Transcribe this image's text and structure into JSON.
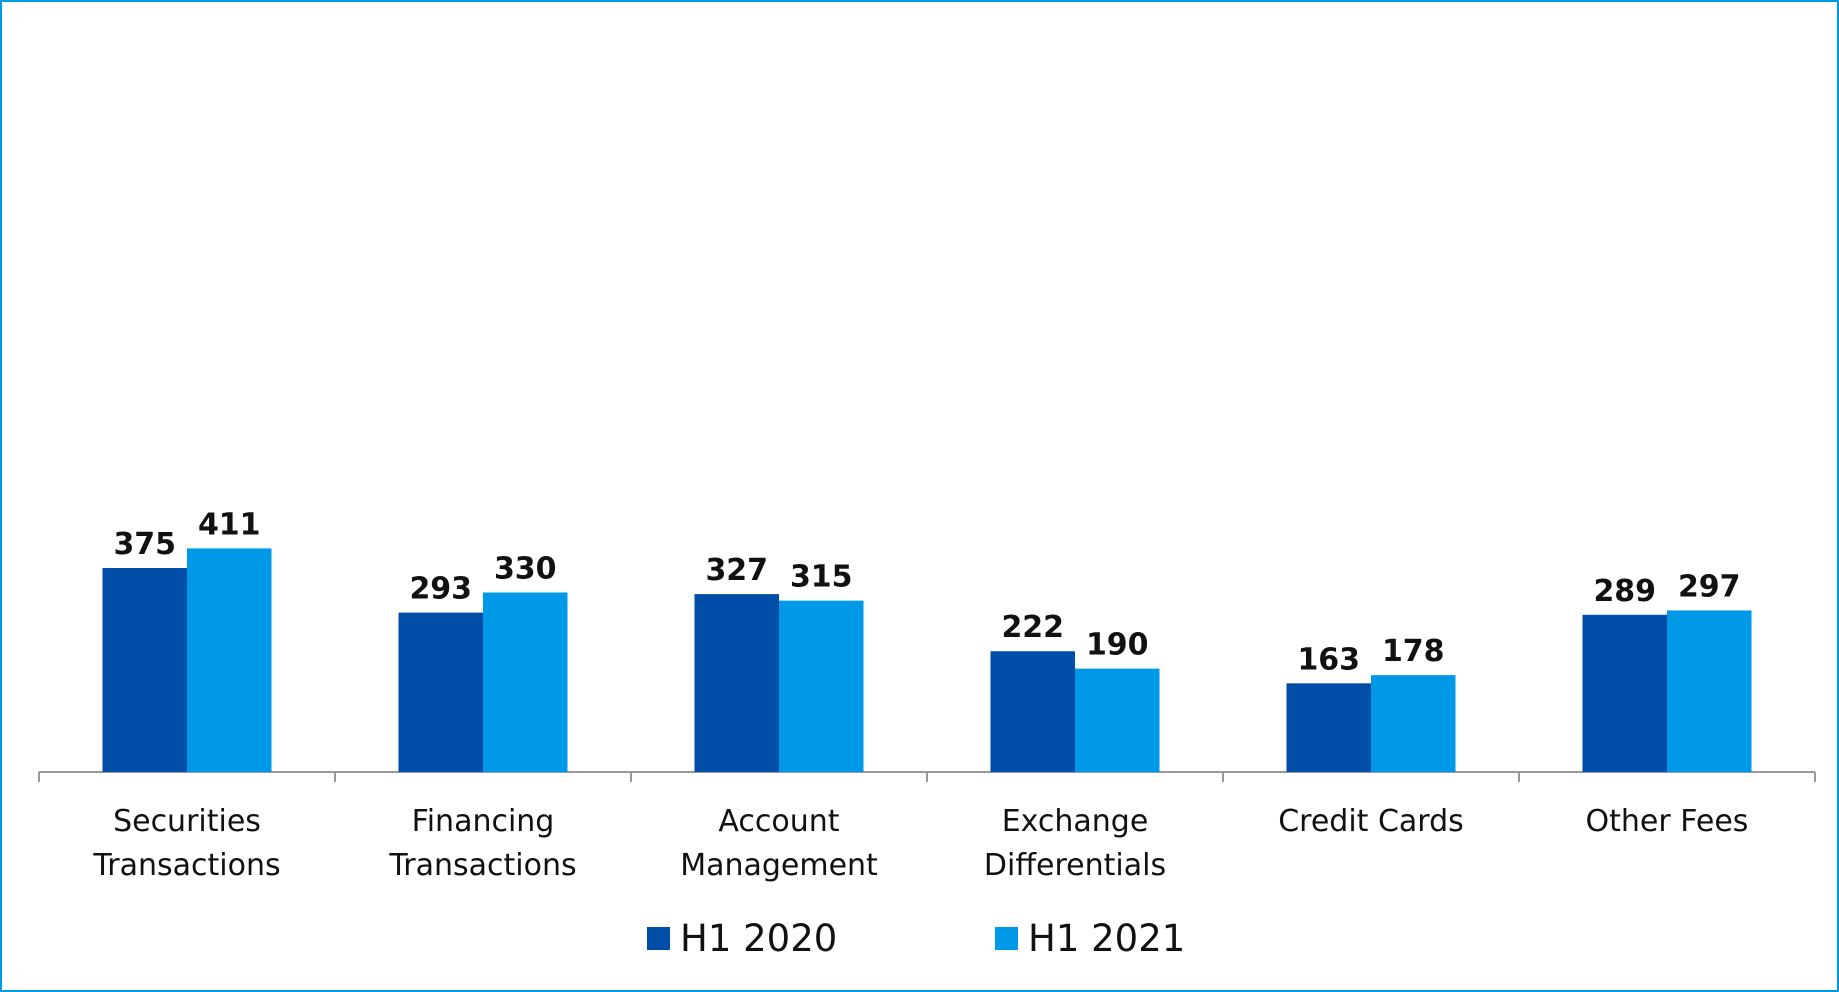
{
  "chart_data": {
    "type": "bar",
    "categories": [
      "Securities Transactions",
      "Financing Transactions",
      "Account Management",
      "Exchange Differentials",
      "Credit Cards",
      "Other Fees"
    ],
    "series": [
      {
        "name": "H1 2020",
        "color": "#004ea8",
        "values": [
          375,
          293,
          327,
          222,
          163,
          289
        ]
      },
      {
        "name": "H1 2021",
        "color": "#0099e8",
        "values": [
          411,
          330,
          315,
          190,
          178,
          297
        ]
      }
    ]
  }
}
